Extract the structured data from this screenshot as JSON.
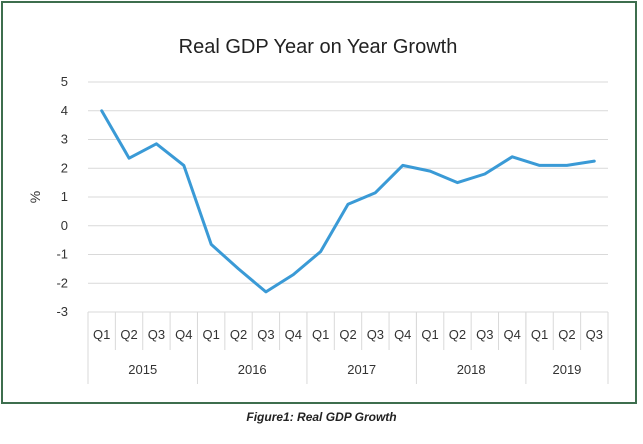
{
  "figure_caption": "Figure1: Real GDP Growth",
  "chart_data": {
    "type": "line",
    "title": "Real GDP Year on Year Growth",
    "xlabel": "",
    "ylabel": "%",
    "ylim": [
      -3,
      5
    ],
    "yticks": [
      "5",
      "4",
      "3",
      "2",
      "1",
      "0",
      "-1",
      "-2",
      "-3"
    ],
    "grid": true,
    "legend": "none",
    "categories": [
      "Q1",
      "Q2",
      "Q3",
      "Q4",
      "Q1",
      "Q2",
      "Q3",
      "Q4",
      "Q1",
      "Q2",
      "Q3",
      "Q4",
      "Q1",
      "Q2",
      "Q3",
      "Q4",
      "Q1",
      "Q2",
      "Q3"
    ],
    "groups": [
      {
        "label": "2015",
        "count": 4
      },
      {
        "label": "2016",
        "count": 4
      },
      {
        "label": "2017",
        "count": 4
      },
      {
        "label": "2018",
        "count": 4
      },
      {
        "label": "2019",
        "count": 3
      }
    ],
    "series": [
      {
        "values": [
          4.0,
          2.35,
          2.85,
          2.1,
          -0.65,
          -1.5,
          -2.3,
          -1.7,
          -0.9,
          0.75,
          1.15,
          2.1,
          1.9,
          1.5,
          1.8,
          2.4,
          2.1,
          2.1,
          2.25
        ],
        "color": "#3a9ad6"
      }
    ],
    "colors": {
      "grid": "#d9d9d9",
      "axis_text": "#333333",
      "frame": "#3d6e4e"
    }
  }
}
